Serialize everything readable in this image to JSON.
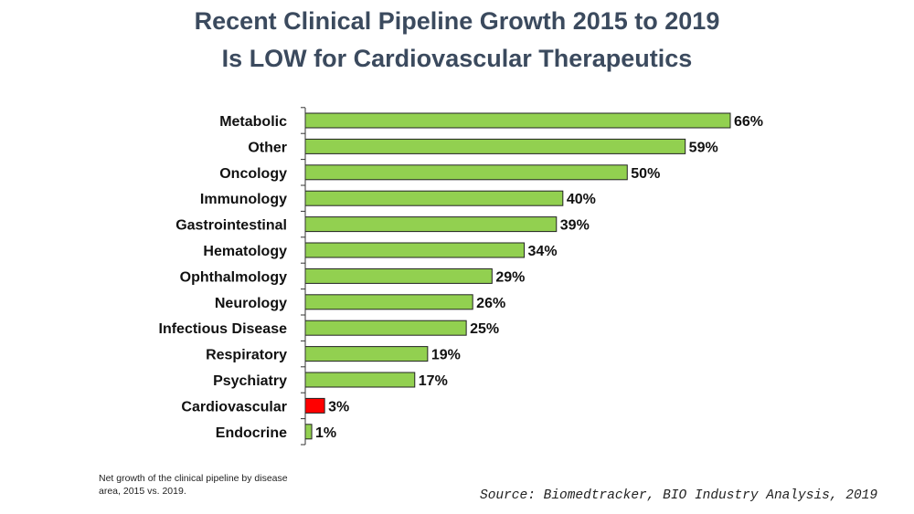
{
  "title_line1": "Recent Clinical Pipeline Growth 2015 to 2019",
  "title_line2": "Is LOW for Cardiovascular Therapeutics",
  "note": "Net growth of the clinical pipeline by disease area, 2015 vs. 2019.",
  "source": "Source: Biomedtracker, BIO Industry Analysis, 2019",
  "colors": {
    "bar": "#92d050",
    "highlight": "#ff0000",
    "bar_stroke": "#222222",
    "title": "#3b4a5e"
  },
  "chart_data": {
    "type": "bar",
    "orientation": "horizontal",
    "categories": [
      "Metabolic",
      "Other",
      "Oncology",
      "Immunology",
      "Gastrointestinal",
      "Hematology",
      "Ophthalmology",
      "Neurology",
      "Infectious Disease",
      "Respiratory",
      "Psychiatry",
      "Cardiovascular",
      "Endocrine"
    ],
    "values": [
      66,
      59,
      50,
      40,
      39,
      34,
      29,
      26,
      25,
      19,
      17,
      3,
      1
    ],
    "data_labels": [
      "66%",
      "59%",
      "50%",
      "40%",
      "39%",
      "34%",
      "29%",
      "26%",
      "25%",
      "19%",
      "17%",
      "3%",
      "1%"
    ],
    "highlight_category": "Cardiovascular",
    "unit": "%",
    "xlim": [
      0,
      66
    ],
    "grid": false,
    "legend": "none"
  }
}
